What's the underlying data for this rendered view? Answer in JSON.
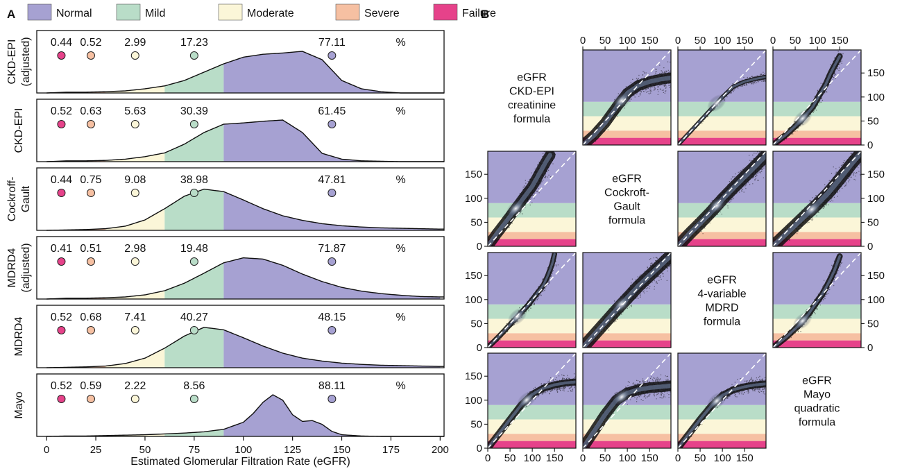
{
  "panel_labels": {
    "a": "A",
    "b": "B"
  },
  "colors": {
    "normal": "#a6a1d2",
    "mild": "#b9ddc8",
    "moderate": "#fbf6d8",
    "severe": "#f6c0a2",
    "failure": "#e6428a",
    "scatter": "#111111",
    "diagonal": "#ffffff"
  },
  "chart_data": [
    {
      "type": "area",
      "panel": "A",
      "xlabel": "Estimated Glomerular Filtration Rate (eGFR)",
      "xlim": [
        -5,
        202
      ],
      "xticks": [
        0,
        25,
        50,
        75,
        100,
        125,
        150,
        175,
        200
      ],
      "legend": {
        "placement": "top",
        "entries": [
          "Normal",
          "Mild",
          "Moderate",
          "Severe",
          "Failure"
        ]
      },
      "stage_bounds": [
        {
          "name": "Failure",
          "from": 0,
          "to": 15
        },
        {
          "name": "Severe",
          "from": 15,
          "to": 30
        },
        {
          "name": "Moderate",
          "from": 30,
          "to": 60
        },
        {
          "name": "Mild",
          "from": 60,
          "to": 90
        },
        {
          "name": "Normal",
          "from": 90,
          "to": 200
        }
      ],
      "marker_x": [
        7.5,
        22.5,
        45,
        75,
        145
      ],
      "percent_unit": "%",
      "rows": [
        {
          "label_lines": [
            "CKD-EPI",
            "(adjusted)"
          ],
          "percents": [
            "0.44",
            "0.52",
            "2.99",
            "17.23",
            "77.11"
          ],
          "density_x": [
            0,
            10,
            20,
            30,
            40,
            50,
            60,
            70,
            80,
            90,
            100,
            110,
            120,
            130,
            140,
            150,
            160,
            170,
            180
          ],
          "density_y": [
            0,
            0.02,
            0.02,
            0.03,
            0.05,
            0.1,
            0.17,
            0.3,
            0.5,
            0.7,
            0.86,
            0.93,
            0.96,
            1.0,
            0.8,
            0.3,
            0.1,
            0.03,
            0
          ]
        },
        {
          "label_lines": [
            "CKD-EPI"
          ],
          "percents": [
            "0.52",
            "0.63",
            "5.63",
            "30.39",
            "61.45"
          ],
          "density_x": [
            0,
            10,
            20,
            30,
            40,
            50,
            60,
            70,
            80,
            90,
            100,
            110,
            120,
            130,
            140,
            150,
            160,
            170,
            180
          ],
          "density_y": [
            0,
            0.02,
            0.02,
            0.03,
            0.06,
            0.12,
            0.21,
            0.42,
            0.7,
            0.9,
            0.93,
            0.97,
            1.0,
            0.7,
            0.2,
            0.06,
            0.02,
            0.01,
            0
          ]
        },
        {
          "label_lines": [
            "Cockroff-",
            "Gault"
          ],
          "percents": [
            "0.44",
            "0.75",
            "9.08",
            "38.98",
            "47.81"
          ],
          "density_x": [
            0,
            10,
            20,
            30,
            40,
            50,
            60,
            70,
            80,
            90,
            100,
            110,
            120,
            130,
            140,
            150,
            160,
            170,
            180,
            190,
            200
          ],
          "density_y": [
            0,
            0.01,
            0.02,
            0.04,
            0.1,
            0.25,
            0.52,
            0.82,
            0.99,
            0.93,
            0.73,
            0.52,
            0.35,
            0.24,
            0.16,
            0.11,
            0.08,
            0.06,
            0.05,
            0.04,
            0.03
          ]
        },
        {
          "label_lines": [
            "MDRD4",
            "(adjusted)"
          ],
          "percents": [
            "0.41",
            "0.51",
            "2.98",
            "19.48",
            "71.87"
          ],
          "density_x": [
            0,
            10,
            20,
            30,
            40,
            50,
            60,
            70,
            80,
            90,
            100,
            110,
            120,
            130,
            140,
            150,
            160,
            170,
            180,
            190,
            200
          ],
          "density_y": [
            0,
            0.02,
            0.02,
            0.03,
            0.05,
            0.1,
            0.2,
            0.38,
            0.62,
            0.87,
            0.99,
            0.96,
            0.81,
            0.6,
            0.42,
            0.28,
            0.19,
            0.13,
            0.09,
            0.06,
            0.05
          ]
        },
        {
          "label_lines": [
            "MDRD4"
          ],
          "percents": [
            "0.52",
            "0.68",
            "7.41",
            "40.27",
            "48.15"
          ],
          "density_x": [
            0,
            10,
            20,
            30,
            40,
            50,
            60,
            70,
            80,
            90,
            100,
            110,
            120,
            130,
            140,
            150,
            160,
            170,
            180,
            190,
            200
          ],
          "density_y": [
            0,
            0.01,
            0.02,
            0.04,
            0.1,
            0.23,
            0.47,
            0.76,
            0.97,
            0.91,
            0.72,
            0.52,
            0.35,
            0.23,
            0.16,
            0.11,
            0.08,
            0.06,
            0.05,
            0.04,
            0.03
          ]
        },
        {
          "label_lines": [
            "Mayo"
          ],
          "percents": [
            "0.52",
            "0.59",
            "2.22",
            "8.56",
            "88.11"
          ],
          "density_x": [
            0,
            10,
            20,
            30,
            40,
            50,
            60,
            70,
            80,
            90,
            100,
            105,
            110,
            115,
            120,
            125,
            130,
            135,
            140,
            145,
            150,
            160,
            170
          ],
          "density_y": [
            0,
            0.01,
            0.01,
            0.02,
            0.03,
            0.04,
            0.06,
            0.08,
            0.11,
            0.17,
            0.34,
            0.55,
            0.82,
            1.0,
            0.87,
            0.52,
            0.36,
            0.38,
            0.29,
            0.12,
            0.04,
            0.01,
            0
          ]
        }
      ]
    },
    {
      "type": "scatter",
      "panel": "B",
      "axis_range": [
        0,
        198
      ],
      "ticks": [
        0,
        50,
        100,
        150
      ],
      "band_edges": [
        0,
        15,
        30,
        60,
        90,
        198
      ],
      "formulas": [
        {
          "lines": [
            "eGFR",
            "CKD-EPI",
            "creatinine",
            "formula"
          ]
        },
        {
          "lines": [
            "eGFR",
            "Cockroft-",
            "Gault",
            "formula"
          ]
        },
        {
          "lines": [
            "eGFR",
            "4-variable",
            "MDRD",
            "formula"
          ]
        },
        {
          "lines": [
            "eGFR",
            "Mayo",
            "quadratic",
            "formula"
          ]
        }
      ],
      "curves": [
        {
          "row": 0,
          "col": 1,
          "x": [
            0,
            25,
            50,
            75,
            100,
            125,
            150,
            175,
            198
          ],
          "y": [
            0,
            20,
            46,
            78,
            108,
            124,
            132,
            137,
            140
          ],
          "spread": 14
        },
        {
          "row": 0,
          "col": 2,
          "x": [
            0,
            25,
            50,
            75,
            100,
            125,
            150,
            175,
            198
          ],
          "y": [
            0,
            25,
            50,
            75,
            100,
            122,
            132,
            138,
            142
          ],
          "spread": 5
        },
        {
          "row": 0,
          "col": 3,
          "x": [
            0,
            30,
            60,
            90,
            105,
            118,
            130,
            140,
            150
          ],
          "y": [
            0,
            22,
            48,
            80,
            105,
            125,
            150,
            168,
            185
          ],
          "spread": 8
        },
        {
          "row": 1,
          "col": 0,
          "x": [
            0,
            20,
            40,
            60,
            80,
            100,
            115,
            130,
            140
          ],
          "y": [
            0,
            26,
            50,
            75,
            100,
            125,
            150,
            175,
            190
          ],
          "spread": 14
        },
        {
          "row": 1,
          "col": 2,
          "x": [
            0,
            25,
            50,
            75,
            100,
            125,
            150,
            175,
            198
          ],
          "y": [
            0,
            25,
            48,
            72,
            98,
            122,
            145,
            168,
            190
          ],
          "spread": 16
        },
        {
          "row": 1,
          "col": 3,
          "x": [
            0,
            25,
            50,
            75,
            100,
            125,
            150,
            175,
            198
          ],
          "y": [
            0,
            22,
            44,
            66,
            88,
            112,
            140,
            170,
            195
          ],
          "spread": 16
        },
        {
          "row": 2,
          "col": 0,
          "x": [
            0,
            30,
            60,
            90,
            110,
            125,
            135,
            145,
            150
          ],
          "y": [
            0,
            28,
            58,
            88,
            112,
            130,
            150,
            175,
            195
          ],
          "spread": 7
        },
        {
          "row": 2,
          "col": 1,
          "x": [
            0,
            25,
            50,
            75,
            100,
            125,
            150,
            175,
            198
          ],
          "y": [
            0,
            26,
            52,
            78,
            103,
            128,
            150,
            172,
            192
          ],
          "spread": 16
        },
        {
          "row": 2,
          "col": 3,
          "x": [
            0,
            30,
            60,
            80,
            95,
            110,
            125,
            138,
            150
          ],
          "y": [
            0,
            22,
            48,
            70,
            90,
            110,
            135,
            160,
            190
          ],
          "spread": 8
        },
        {
          "row": 3,
          "col": 0,
          "x": [
            0,
            25,
            50,
            75,
            100,
            125,
            150,
            175,
            198
          ],
          "y": [
            0,
            30,
            60,
            90,
            112,
            125,
            132,
            136,
            138
          ],
          "spread": 9
        },
        {
          "row": 3,
          "col": 1,
          "x": [
            0,
            25,
            50,
            75,
            100,
            125,
            150,
            175,
            198
          ],
          "y": [
            0,
            35,
            70,
            100,
            115,
            122,
            126,
            128,
            130
          ],
          "spread": 14
        },
        {
          "row": 3,
          "col": 2,
          "x": [
            0,
            25,
            50,
            75,
            100,
            125,
            150,
            175,
            198
          ],
          "y": [
            0,
            30,
            60,
            88,
            110,
            122,
            128,
            132,
            134
          ],
          "spread": 9
        }
      ]
    }
  ]
}
